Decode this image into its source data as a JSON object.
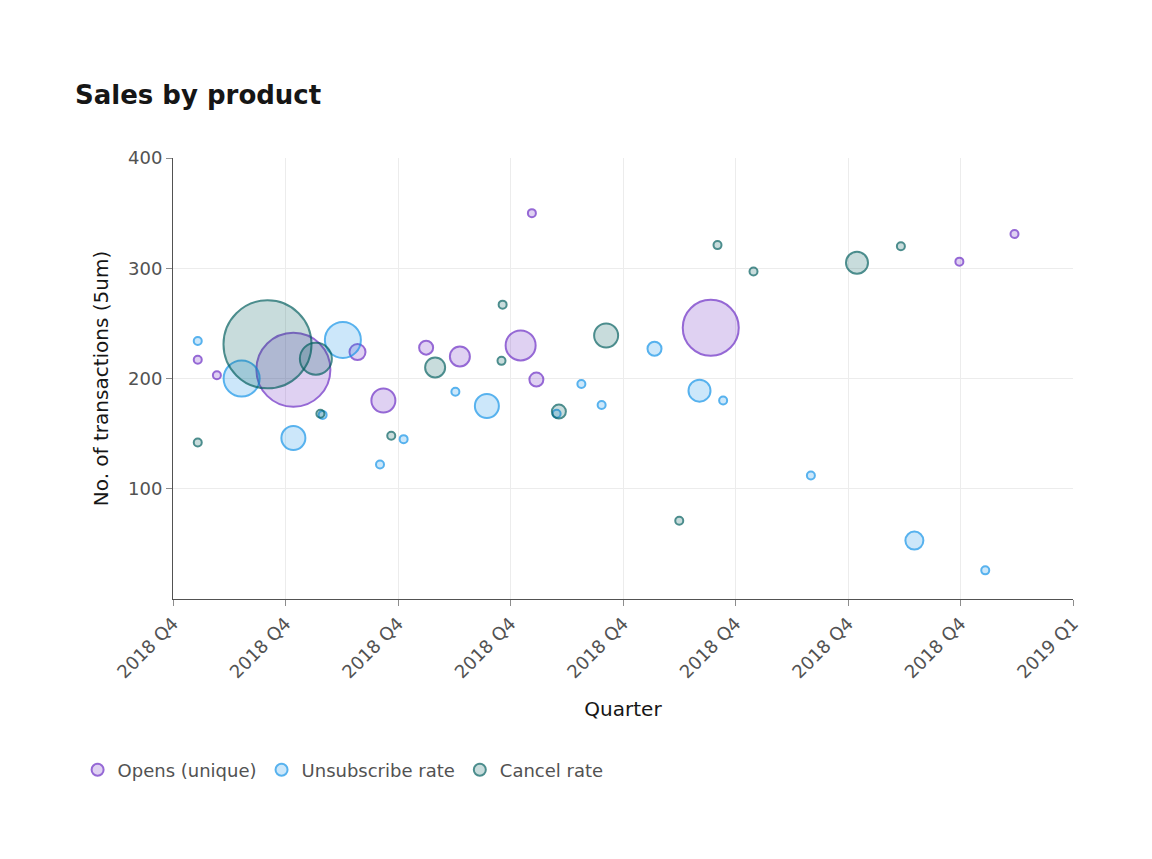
{
  "chart_data": {
    "type": "bubble",
    "title": "Sales by product",
    "x_label": "Quarter",
    "y_label": "No. of transactions (5um)",
    "xlim": [
      0,
      8
    ],
    "xticks": [
      {
        "value": 0,
        "label": "2018 Q4"
      },
      {
        "value": 1,
        "label": "2018 Q4"
      },
      {
        "value": 2,
        "label": "2018 Q4"
      },
      {
        "value": 3,
        "label": "2018 Q4"
      },
      {
        "value": 4,
        "label": "2018 Q4"
      },
      {
        "value": 5,
        "label": "2018 Q4"
      },
      {
        "value": 6,
        "label": "2018 Q4"
      },
      {
        "value": 7,
        "label": "2018 Q4"
      },
      {
        "value": 8,
        "label": "2019 Q1"
      }
    ],
    "ylim": [
      0,
      400
    ],
    "yticks": [
      100,
      200,
      300,
      400
    ],
    "grid": true,
    "legend": "bottom-left",
    "series": [
      {
        "name": "Opens (unique)",
        "color": "#6929c4",
        "x": [
          0.22,
          0.39,
          1.07,
          1.64,
          1.87,
          2.25,
          2.55,
          3.09,
          3.19,
          3.23,
          4.78,
          6.99,
          7.48
        ],
        "values": [
          217,
          203,
          208,
          224,
          180,
          228,
          220,
          230,
          350,
          199,
          246,
          306,
          331
        ],
        "sizes": [
          8,
          8,
          74,
          16,
          24,
          14,
          20,
          30,
          8,
          14,
          56,
          8,
          8
        ]
      },
      {
        "name": "Unsubscribe rate",
        "color": "#1192e8",
        "x": [
          0.22,
          0.61,
          1.07,
          1.33,
          1.51,
          1.84,
          2.05,
          2.51,
          2.79,
          3.41,
          3.63,
          3.81,
          4.28,
          4.68,
          4.89,
          5.67,
          6.59,
          7.22
        ],
        "values": [
          234,
          200,
          146,
          167,
          235,
          122,
          145,
          188,
          175,
          168,
          195,
          176,
          227,
          189,
          180,
          112,
          53,
          26
        ],
        "sizes": [
          8,
          36,
          24,
          8,
          36,
          8,
          8,
          8,
          24,
          8,
          8,
          8,
          14,
          22,
          8,
          8,
          18,
          8
        ]
      },
      {
        "name": "Cancel rate",
        "color": "#005d5d",
        "x": [
          0.22,
          0.84,
          1.27,
          1.31,
          1.94,
          2.33,
          2.93,
          2.92,
          3.43,
          3.85,
          4.5,
          4.84,
          5.16,
          6.08,
          6.47
        ],
        "values": [
          142,
          231,
          218,
          168,
          148,
          210,
          267,
          216,
          170,
          239,
          71,
          321,
          297,
          305,
          320
        ],
        "sizes": [
          8,
          88,
          32,
          8,
          8,
          20,
          8,
          8,
          14,
          24,
          8,
          8,
          8,
          22,
          8
        ]
      }
    ]
  }
}
